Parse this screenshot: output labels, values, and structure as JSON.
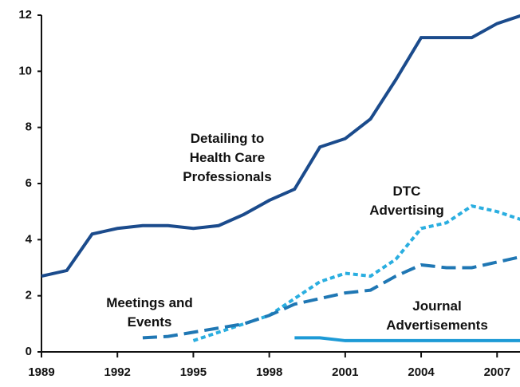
{
  "chart_data": {
    "type": "line",
    "x": [
      1989,
      1990,
      1991,
      1992,
      1993,
      1994,
      1995,
      1996,
      1997,
      1998,
      1999,
      2000,
      2001,
      2002,
      2003,
      2004,
      2005,
      2006,
      2007,
      2008
    ],
    "series": [
      {
        "name": "Detailing to Health Care Professionals",
        "color": "#1b4b8c",
        "dash": "none",
        "values": [
          2.7,
          2.9,
          4.2,
          4.4,
          4.5,
          4.5,
          4.4,
          4.5,
          4.9,
          5.4,
          5.8,
          7.3,
          7.6,
          8.3,
          9.7,
          11.2,
          11.2,
          11.2,
          11.7,
          12.0
        ]
      },
      {
        "name": "DTC Advertising",
        "color": "#2aaee0",
        "dash": "6,4",
        "values": [
          null,
          null,
          null,
          null,
          null,
          null,
          0.4,
          0.7,
          1.0,
          1.3,
          1.9,
          2.5,
          2.8,
          2.7,
          3.3,
          4.4,
          4.6,
          5.2,
          5.0,
          4.7
        ]
      },
      {
        "name": "Meetings and Events",
        "color": "#1f77b4",
        "dash": "18,8",
        "values": [
          null,
          null,
          null,
          null,
          0.5,
          0.55,
          0.7,
          0.85,
          1.0,
          1.3,
          1.7,
          1.9,
          2.1,
          2.2,
          2.7,
          3.1,
          3.0,
          3.0,
          3.2,
          3.4
        ]
      },
      {
        "name": "Journal Advertisements",
        "color": "#1d9ad6",
        "dash": "none",
        "values": [
          null,
          null,
          null,
          null,
          null,
          null,
          null,
          null,
          null,
          null,
          0.5,
          0.5,
          0.4,
          0.4,
          0.4,
          0.4,
          0.4,
          0.4,
          0.4,
          0.4
        ]
      }
    ],
    "xlim": [
      1989,
      2008
    ],
    "xticks": [
      1989,
      1992,
      1995,
      1998,
      2001,
      2004,
      2007
    ],
    "ylim": [
      0,
      12
    ],
    "yticks": [
      0,
      2,
      4,
      6,
      8,
      10,
      12
    ]
  }
}
